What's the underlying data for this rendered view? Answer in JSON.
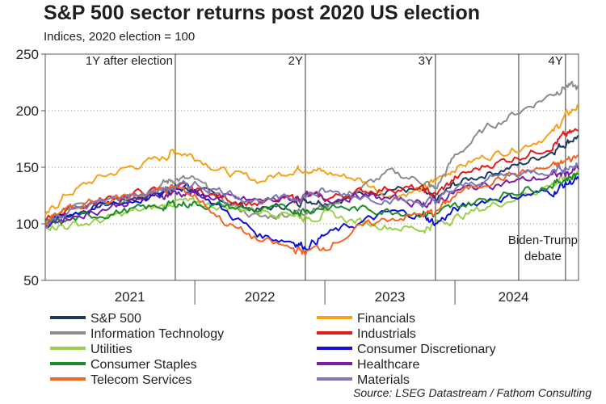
{
  "chart_data": {
    "type": "line",
    "title": "S&P 500 sector returns post 2020 US election",
    "subtitle": "Indices, 2020 election = 100",
    "source": "Source: LSEG Datastream / Fathom Consulting",
    "xlabel": "",
    "ylabel": "",
    "xlim": [
      2020.85,
      2024.95
    ],
    "ylim": [
      50,
      250
    ],
    "yticks": [
      50,
      100,
      150,
      200,
      250
    ],
    "ytick_labels": [
      "50",
      "100",
      "150",
      "200",
      "250"
    ],
    "xtick_labels": [
      {
        "label": "2021",
        "x": 2021.5
      },
      {
        "label": "2022",
        "x": 2022.5
      },
      {
        "label": "2023",
        "x": 2023.5
      },
      {
        "label": "2024",
        "x": 2024.45
      }
    ],
    "year_boundaries": [
      2022.0,
      2023.0,
      2024.0
    ],
    "gridlines": [
      100,
      150,
      200
    ],
    "vlines": [
      {
        "x": 2021.85,
        "label": "1Y after election",
        "anchor": "end"
      },
      {
        "x": 2022.85,
        "label": "2Y",
        "anchor": "end"
      },
      {
        "x": 2023.85,
        "label": "3Y",
        "anchor": "end"
      },
      {
        "x": 2024.49,
        "label": "Biden-Trump debate",
        "annotation_lines": [
          "Biden-Trump",
          "debate"
        ]
      },
      {
        "x": 2024.85,
        "label": "4Y",
        "anchor": "end"
      }
    ],
    "x": [
      2020.85,
      2021.0,
      2021.25,
      2021.5,
      2021.75,
      2021.85,
      2022.0,
      2022.25,
      2022.5,
      2022.75,
      2022.85,
      2023.0,
      2023.25,
      2023.5,
      2023.75,
      2023.85,
      2024.0,
      2024.25,
      2024.5,
      2024.75,
      2024.85,
      2024.95
    ],
    "series": [
      {
        "name": "S&P 500",
        "color": "#1f3b5c",
        "values": [
          100,
          108,
          115,
          122,
          128,
          132,
          130,
          120,
          112,
          118,
          122,
          120,
          125,
          132,
          128,
          120,
          135,
          145,
          152,
          165,
          172,
          178
        ]
      },
      {
        "name": "Financials",
        "color": "#f5a219",
        "values": [
          105,
          125,
          140,
          150,
          158,
          165,
          160,
          145,
          138,
          148,
          150,
          145,
          140,
          125,
          130,
          138,
          150,
          160,
          168,
          180,
          195,
          205
        ]
      },
      {
        "name": "Information Technology",
        "color": "#8c8c8c",
        "values": [
          100,
          112,
          118,
          125,
          135,
          140,
          138,
          118,
          105,
          110,
          112,
          115,
          130,
          145,
          138,
          130,
          160,
          185,
          200,
          215,
          222,
          220
        ]
      },
      {
        "name": "Industrials",
        "color": "#e31b1b",
        "values": [
          102,
          112,
          120,
          126,
          130,
          132,
          130,
          122,
          118,
          122,
          125,
          122,
          128,
          132,
          130,
          125,
          140,
          152,
          160,
          170,
          178,
          182
        ]
      },
      {
        "name": "Utilities",
        "color": "#9bd14a",
        "values": [
          100,
          98,
          102,
          110,
          115,
          120,
          118,
          115,
          112,
          110,
          105,
          108,
          102,
          98,
          95,
          100,
          105,
          115,
          125,
          135,
          140,
          145
        ]
      },
      {
        "name": "Consumer Discretionary",
        "color": "#1010d8",
        "values": [
          100,
          108,
          115,
          120,
          125,
          135,
          130,
          110,
          90,
          85,
          80,
          90,
          100,
          110,
          108,
          100,
          112,
          122,
          125,
          128,
          135,
          140
        ]
      },
      {
        "name": "Consumer Staples",
        "color": "#1b8c2a",
        "values": [
          100,
          102,
          108,
          112,
          115,
          118,
          118,
          115,
          112,
          112,
          112,
          115,
          113,
          112,
          110,
          108,
          115,
          122,
          130,
          135,
          140,
          145
        ]
      },
      {
        "name": "Healthcare",
        "color": "#7b1fa2",
        "values": [
          100,
          105,
          112,
          120,
          125,
          128,
          126,
          122,
          120,
          122,
          125,
          122,
          125,
          122,
          118,
          120,
          128,
          135,
          138,
          142,
          145,
          148
        ]
      },
      {
        "name": "Telecom Services",
        "color": "#f26522",
        "values": [
          100,
          112,
          120,
          125,
          130,
          132,
          125,
          100,
          85,
          78,
          75,
          80,
          95,
          105,
          108,
          110,
          125,
          138,
          145,
          150,
          155,
          160
        ]
      },
      {
        "name": "Materials",
        "color": "#7b79b5",
        "values": [
          100,
          110,
          118,
          125,
          130,
          132,
          135,
          128,
          120,
          122,
          125,
          128,
          125,
          122,
          118,
          120,
          130,
          140,
          145,
          148,
          150,
          152
        ]
      }
    ],
    "legend_position": "bottom",
    "legend_layout": "two-columns"
  }
}
